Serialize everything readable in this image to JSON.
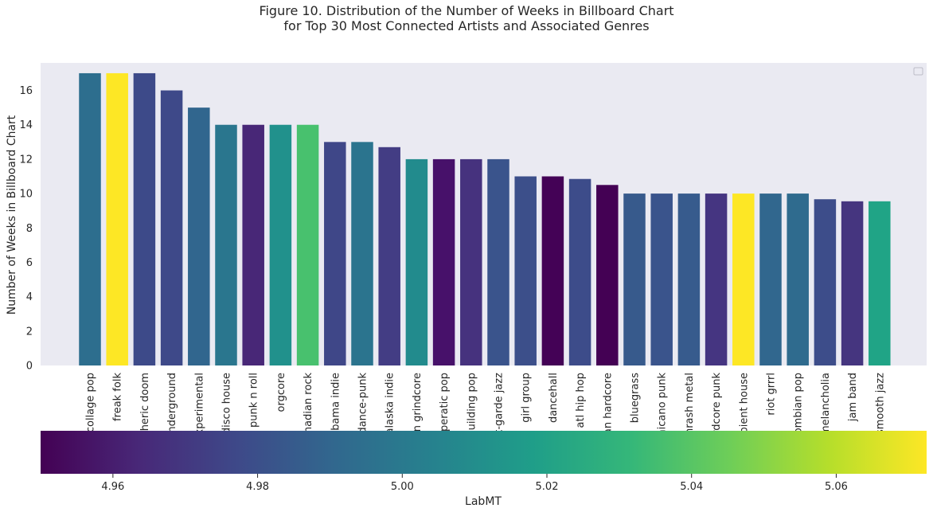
{
  "title_lines": [
    "Figure 10. Distribution of the Number of Weeks in Billboard Chart",
    "for Top 30 Most Connected Artists and Associated Genres"
  ],
  "chart_data": {
    "type": "bar",
    "ylabel": "Number of Weeks in Billboard Chart",
    "ylim": [
      0,
      17.6
    ],
    "yticks": [
      0,
      2,
      4,
      6,
      8,
      10,
      12,
      14,
      16
    ],
    "grid": false,
    "legend": {
      "placement": "top-right",
      "entries": []
    },
    "categories": [
      "collage pop",
      "freak folk",
      "pheric doom",
      "underground",
      "experimental",
      "disco house",
      "punk n roll",
      "orgcore",
      "anadian rock",
      "abama indie",
      "dance-punk",
      "alaska indie",
      "an grindcore",
      "operatic pop",
      "building pop",
      "t-garde jazz",
      "girl group",
      "dancehall",
      "atl hip hop",
      "an hardcore",
      "bluegrass",
      "hicano punk",
      "thrash metal",
      "rdcore punk",
      "mbient house",
      "riot grrrl",
      "lombian pop",
      "melancholia",
      "jam band",
      "smooth jazz"
    ],
    "values": [
      17,
      17,
      17,
      16,
      15,
      14,
      14,
      14,
      14,
      13,
      13,
      12.7,
      12,
      12,
      12,
      12,
      11,
      11,
      10.85,
      10.5,
      10,
      10,
      10,
      10,
      10,
      10,
      10,
      9.67,
      9.55,
      9.55
    ],
    "colors": [
      "#2d6e8e",
      "#fde725",
      "#3d4a89",
      "#3e4989",
      "#31668e",
      "#2a768e",
      "#482777",
      "#21918c",
      "#48c16e",
      "#3f4788",
      "#2b748e",
      "#433d84",
      "#228b8d",
      "#47116a",
      "#46327e",
      "#3a548c",
      "#3c4f8a",
      "#440256",
      "#3d4c8a",
      "#440154",
      "#375a8c",
      "#3a548c",
      "#375b8d",
      "#453581",
      "#fde725",
      "#31678e",
      "#2f6b8e",
      "#3d4d8a",
      "#45357f",
      "#20a486"
    ],
    "colorbar": {
      "label": "LabMT",
      "range": [
        4.95,
        5.0725
      ],
      "ticks": [
        4.96,
        4.98,
        5.0,
        5.02,
        5.04,
        5.06
      ],
      "tick_labels": [
        "4.96",
        "4.98",
        "5.00",
        "5.02",
        "5.04",
        "5.06"
      ],
      "colormap": "viridis",
      "stops": [
        "#440154",
        "#482878",
        "#3e4989",
        "#31688e",
        "#26828e",
        "#1f9e89",
        "#35b779",
        "#6ece58",
        "#b5de2b",
        "#fde725"
      ]
    }
  }
}
